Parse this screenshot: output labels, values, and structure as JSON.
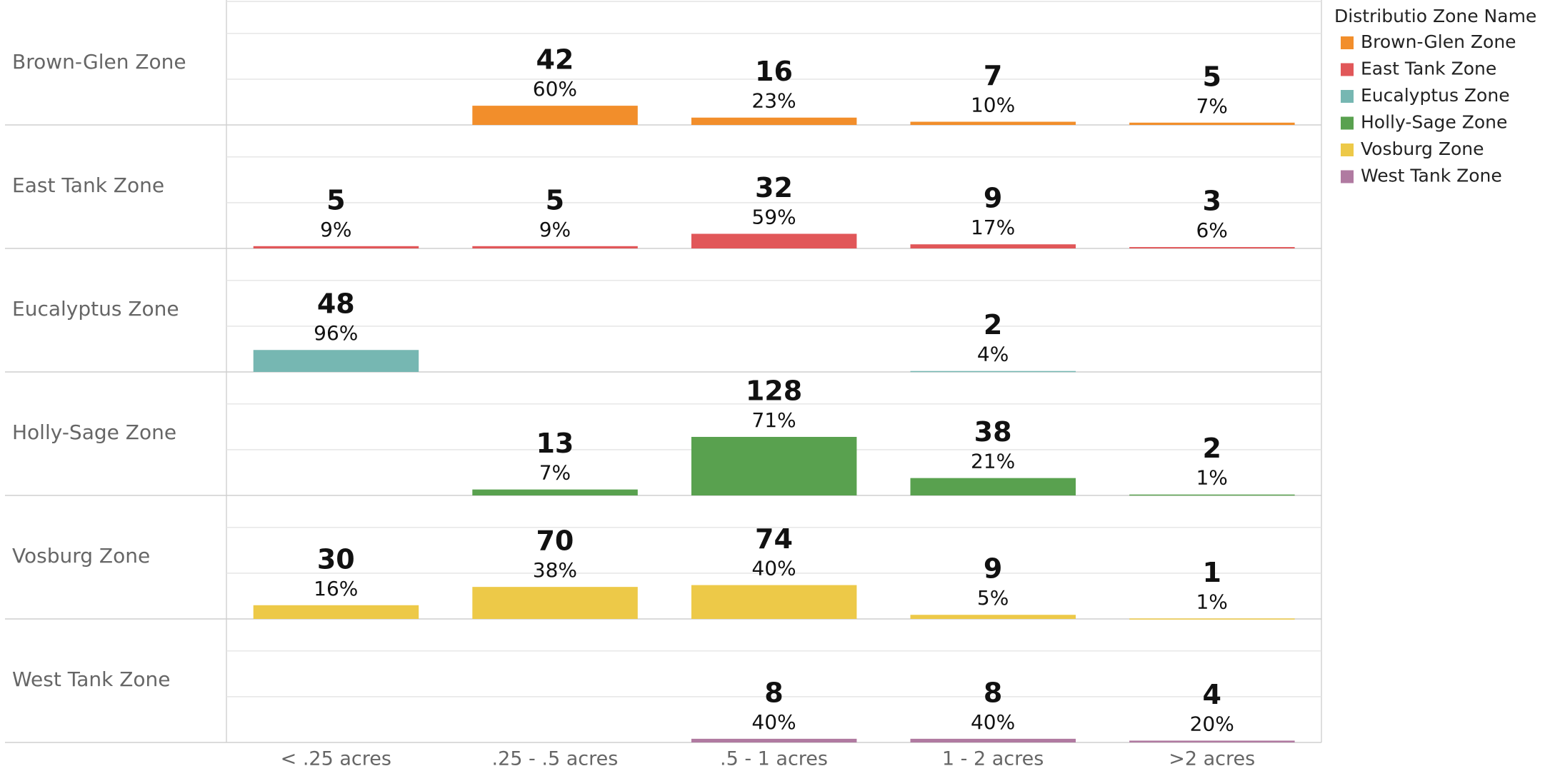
{
  "chart_data": {
    "type": "bar",
    "legend_title": "Distributio Zone Name",
    "legend_position": "right",
    "categories": [
      "< .25 acres",
      ".25 - .5 acres",
      ".5 - 1 acres",
      "1 - 2 acres",
      ">2 acres"
    ],
    "ylim": [
      0,
      270
    ],
    "yticks": [
      0,
      100,
      200
    ],
    "grid": true,
    "series": [
      {
        "name": "Brown-Glen Zone",
        "color": "#f28e2b",
        "values": [
          null,
          42,
          16,
          7,
          5
        ],
        "percent_labels": [
          null,
          "60%",
          "23%",
          "10%",
          "7%"
        ]
      },
      {
        "name": "East Tank Zone",
        "color": "#e15759",
        "values": [
          5,
          5,
          32,
          9,
          3
        ],
        "percent_labels": [
          "9%",
          "9%",
          "59%",
          "17%",
          "6%"
        ]
      },
      {
        "name": "Eucalyptus Zone",
        "color": "#76b7b2",
        "values": [
          48,
          null,
          null,
          2,
          null
        ],
        "percent_labels": [
          "96%",
          null,
          null,
          "4%",
          null
        ]
      },
      {
        "name": "Holly-Sage Zone",
        "color": "#59a14f",
        "values": [
          null,
          13,
          128,
          38,
          2
        ],
        "percent_labels": [
          null,
          "7%",
          "71%",
          "21%",
          "1%"
        ]
      },
      {
        "name": "Vosburg Zone",
        "color": "#edc948",
        "values": [
          30,
          70,
          74,
          9,
          1
        ],
        "percent_labels": [
          "16%",
          "38%",
          "40%",
          "5%",
          "1%"
        ]
      },
      {
        "name": "West Tank Zone",
        "color": "#b07aa1",
        "values": [
          null,
          null,
          8,
          8,
          4
        ],
        "percent_labels": [
          null,
          null,
          "40%",
          "40%",
          "20%"
        ]
      }
    ]
  }
}
